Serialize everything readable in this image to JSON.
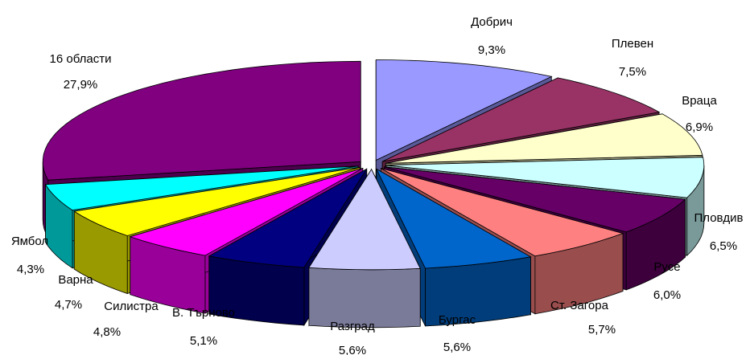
{
  "chart_data": {
    "type": "pie",
    "style": "3d-exploded",
    "title": "",
    "slices": [
      {
        "name": "Добрич",
        "label": "9,3%",
        "value": 9.3,
        "color": "#9999FF",
        "side": "#5A5A99"
      },
      {
        "name": "Плевен",
        "label": "7,5%",
        "value": 7.5,
        "color": "#993366",
        "side": "#5C1F3D"
      },
      {
        "name": "Враца",
        "label": "6,9%",
        "value": 6.9,
        "color": "#FFFFCC",
        "side": "#99997A"
      },
      {
        "name": "Пловдив",
        "label": "6,5%",
        "value": 6.5,
        "color": "#CCFFFF",
        "side": "#7A9999"
      },
      {
        "name": "Русе",
        "label": "6,0%",
        "value": 6.0,
        "color": "#660066",
        "side": "#3D003D"
      },
      {
        "name": "Ст. Загора",
        "label": "5,7%",
        "value": 5.7,
        "color": "#FF8080",
        "side": "#994D4D"
      },
      {
        "name": "Бургас",
        "label": "5,6%",
        "value": 5.6,
        "color": "#0066CC",
        "side": "#003D7A"
      },
      {
        "name": "Разград",
        "label": "5,6%",
        "value": 5.6,
        "color": "#CCCCFF",
        "side": "#7A7A99"
      },
      {
        "name": "В. Търново",
        "label": "5,1%",
        "value": 5.1,
        "color": "#000080",
        "side": "#00004D"
      },
      {
        "name": "Силистра",
        "label": "4,8%",
        "value": 4.8,
        "color": "#FF00FF",
        "side": "#990099"
      },
      {
        "name": "Варна",
        "label": "4,7%",
        "value": 4.7,
        "color": "#FFFF00",
        "side": "#999900"
      },
      {
        "name": "Ямбол",
        "label": "4,3%",
        "value": 4.3,
        "color": "#00FFFF",
        "side": "#009999"
      },
      {
        "name": "16 области",
        "label": "27,9%",
        "value": 27.9,
        "color": "#800080",
        "side": "#4D004D"
      }
    ]
  }
}
